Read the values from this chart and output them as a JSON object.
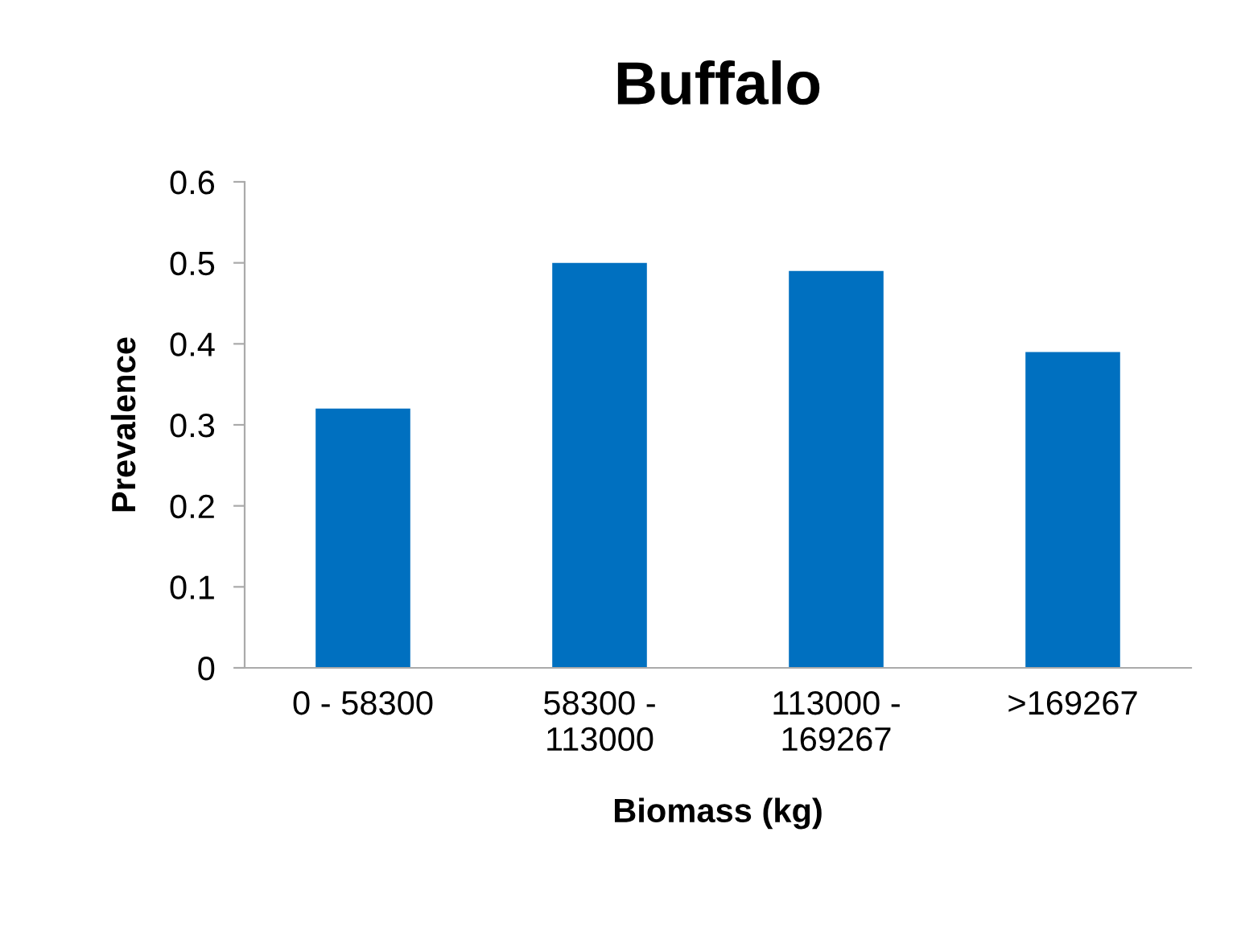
{
  "chart_data": {
    "type": "bar",
    "title": "Buffalo",
    "xlabel": "Biomass (kg)",
    "ylabel": "Prevalence",
    "categories": [
      "0 - 58300",
      "58300 -\n113000",
      "113000 -\n169267",
      ">169267"
    ],
    "values": [
      0.32,
      0.5,
      0.49,
      0.39
    ],
    "color": "#0070c0",
    "ylim": [
      0,
      0.6
    ],
    "yticks": [
      {
        "value": 0,
        "label": "0"
      },
      0.1,
      0.2,
      0.3,
      0.4,
      0.5,
      0.6
    ],
    "grid": false
  }
}
